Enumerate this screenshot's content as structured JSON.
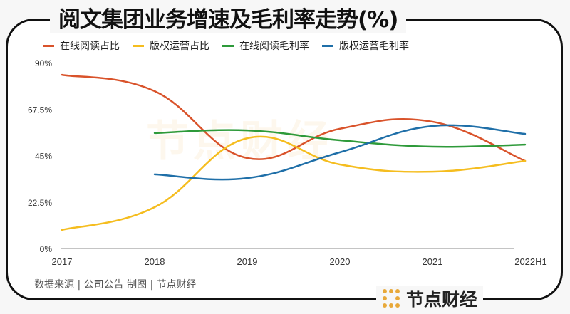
{
  "title": "阅文集团业务增速及毛利率走势(%)",
  "source": "数据来源 | 公司公告  制图 | 节点财经",
  "brand": "节点财经",
  "watermark": "节点财经",
  "chart_data": {
    "type": "line",
    "title": "阅文集团业务增速及毛利率走势(%)",
    "categories": [
      "2017",
      "2018",
      "2019",
      "2020",
      "2021",
      "2022H1"
    ],
    "yticks": [
      "0%",
      "22.5%",
      "45%",
      "67.5%",
      "90%"
    ],
    "ylim": [
      0,
      90
    ],
    "grid": false,
    "legend": "top-left",
    "series": [
      {
        "name": "在线阅读占比",
        "color": "#d9532b",
        "values": [
          84.1,
          76.2,
          43.8,
          58.0,
          61.4,
          42.4
        ]
      },
      {
        "name": "版权运营占比",
        "color": "#f5bd1f",
        "values": [
          9.0,
          20.0,
          53.4,
          40.7,
          37.2,
          42.4
        ]
      },
      {
        "name": "在线阅读毛利率",
        "color": "#2e9a3a",
        "values": [
          null,
          55.9,
          57.2,
          52.4,
          49.3,
          50.3
        ]
      },
      {
        "name": "版权运营毛利率",
        "color": "#1f6fa8",
        "values": [
          null,
          35.9,
          34.1,
          46.6,
          59.3,
          55.5
        ]
      }
    ]
  }
}
